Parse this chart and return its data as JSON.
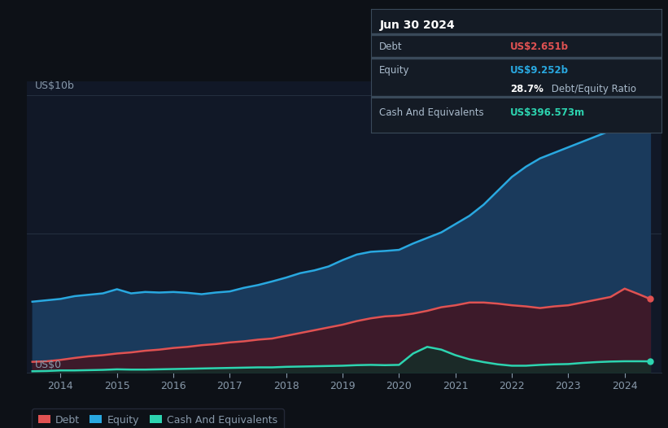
{
  "background_color": "#0d1117",
  "plot_bg_color": "#111827",
  "ylabel_top": "US$10b",
  "ylabel_bottom": "US$0",
  "x_ticks": [
    2014,
    2015,
    2016,
    2017,
    2018,
    2019,
    2020,
    2021,
    2022,
    2023,
    2024
  ],
  "years": [
    2013.5,
    2013.75,
    2014.0,
    2014.25,
    2014.5,
    2014.75,
    2015.0,
    2015.25,
    2015.5,
    2015.75,
    2016.0,
    2016.25,
    2016.5,
    2016.75,
    2017.0,
    2017.25,
    2017.5,
    2017.75,
    2018.0,
    2018.25,
    2018.5,
    2018.75,
    2019.0,
    2019.25,
    2019.5,
    2019.75,
    2020.0,
    2020.25,
    2020.5,
    2020.75,
    2021.0,
    2021.25,
    2021.5,
    2021.75,
    2022.0,
    2022.25,
    2022.5,
    2022.75,
    2023.0,
    2023.25,
    2023.5,
    2023.75,
    2024.0,
    2024.25,
    2024.45
  ],
  "equity": [
    2.55,
    2.6,
    2.65,
    2.75,
    2.8,
    2.85,
    3.0,
    2.85,
    2.9,
    2.88,
    2.9,
    2.87,
    2.82,
    2.88,
    2.92,
    3.05,
    3.15,
    3.28,
    3.42,
    3.58,
    3.68,
    3.82,
    4.05,
    4.25,
    4.35,
    4.38,
    4.42,
    4.65,
    4.85,
    5.05,
    5.35,
    5.65,
    6.05,
    6.55,
    7.05,
    7.42,
    7.72,
    7.92,
    8.12,
    8.32,
    8.52,
    8.72,
    9.0,
    9.2,
    9.252
  ],
  "debt": [
    0.38,
    0.4,
    0.45,
    0.52,
    0.58,
    0.62,
    0.68,
    0.72,
    0.78,
    0.82,
    0.88,
    0.92,
    0.98,
    1.02,
    1.08,
    1.12,
    1.18,
    1.22,
    1.32,
    1.42,
    1.52,
    1.62,
    1.72,
    1.85,
    1.95,
    2.02,
    2.05,
    2.12,
    2.22,
    2.35,
    2.42,
    2.52,
    2.52,
    2.48,
    2.42,
    2.38,
    2.32,
    2.38,
    2.42,
    2.52,
    2.62,
    2.72,
    3.02,
    2.82,
    2.651
  ],
  "cash": [
    0.04,
    0.05,
    0.07,
    0.07,
    0.08,
    0.09,
    0.11,
    0.1,
    0.1,
    0.11,
    0.12,
    0.13,
    0.14,
    0.15,
    0.16,
    0.17,
    0.18,
    0.18,
    0.2,
    0.21,
    0.22,
    0.23,
    0.24,
    0.26,
    0.27,
    0.26,
    0.27,
    0.68,
    0.92,
    0.82,
    0.62,
    0.47,
    0.37,
    0.29,
    0.24,
    0.24,
    0.27,
    0.29,
    0.3,
    0.34,
    0.37,
    0.39,
    0.4,
    0.4,
    0.397
  ],
  "equity_color": "#29a8e0",
  "equity_fill": "#1a3a5c",
  "debt_color": "#e05252",
  "debt_fill": "#3d1a2a",
  "cash_color": "#2dd4b0",
  "cash_fill": "#162e28",
  "grid_color": "#253040",
  "tick_color": "#8899aa",
  "label_color": "#aabbcc",
  "legend_bg": "#0d1117",
  "legend_border": "#2a3040",
  "infobox_bg": "#141b25",
  "infobox_border": "#3a4a5a",
  "infobox_title": "Jun 30 2024",
  "infobox_debt_label": "Debt",
  "infobox_debt_value": "US$2.651b",
  "infobox_equity_label": "Equity",
  "infobox_equity_value": "US$9.252b",
  "infobox_ratio": "28.7%",
  "infobox_ratio_label": " Debt/Equity Ratio",
  "infobox_cash_label": "Cash And Equivalents",
  "infobox_cash_value": "US$396.573m",
  "ylim": [
    0,
    10.5
  ],
  "xlim": [
    2013.4,
    2024.65
  ]
}
